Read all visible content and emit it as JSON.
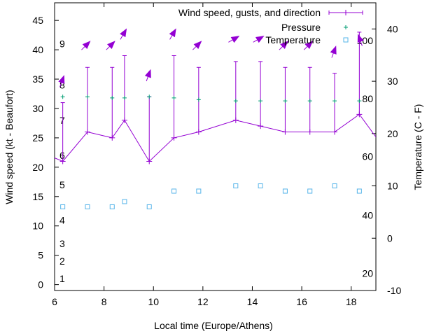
{
  "chart_data": {
    "type": "line",
    "xlabel": "Local time (Europe/Athens)",
    "ylabel_left": "Wind speed (kt - Beaufort)",
    "ylabel_right": "Temperature (C - F)",
    "x_range": [
      6,
      19
    ],
    "x_ticks": [
      6,
      8,
      10,
      12,
      14,
      16,
      18
    ],
    "y_left_range": [
      -1,
      48
    ],
    "y_left_ticks": [
      0,
      5,
      10,
      15,
      20,
      25,
      30,
      35,
      40,
      45
    ],
    "y_right_range": [
      -10,
      45
    ],
    "y_right_ticks": [
      -10,
      0,
      10,
      20,
      30,
      40
    ],
    "beaufort_labels": [
      {
        "label": "1",
        "y": 1
      },
      {
        "label": "2",
        "y": 4
      },
      {
        "label": "3",
        "y": 7
      },
      {
        "label": "4",
        "y": 11
      },
      {
        "label": "5",
        "y": 17
      },
      {
        "label": "6",
        "y": 22
      },
      {
        "label": "7",
        "y": 28
      },
      {
        "label": "8",
        "y": 34
      },
      {
        "label": "9",
        "y": 41
      }
    ],
    "fahrenheit_labels": [
      {
        "label": "20",
        "c": -6.7
      },
      {
        "label": "40",
        "c": 4.4
      },
      {
        "label": "60",
        "c": 15.6
      },
      {
        "label": "80",
        "c": 26.7
      },
      {
        "label": "100",
        "c": 37.8
      }
    ],
    "legend": {
      "position": "top-right",
      "entries": [
        "Wind speed, gusts, and direction",
        "Pressure",
        "Temperature"
      ]
    },
    "colors": {
      "wind": "#9400d3",
      "pressure": "#009e73",
      "temperature": "#56b4e9",
      "axis": "#000000"
    },
    "series": [
      {
        "name": "Wind speed, gusts, and direction",
        "x": [
          5.2,
          6.33,
          7.33,
          8.33,
          8.83,
          9.83,
          10.83,
          11.83,
          13.33,
          14.33,
          15.33,
          16.33,
          17.33,
          18.33,
          19.2
        ],
        "values": [
          23,
          21,
          26,
          25,
          28,
          21,
          25,
          26,
          28,
          27,
          26,
          26,
          26,
          29,
          24
        ],
        "gusts": [
          null,
          31,
          37,
          37,
          39,
          32,
          39,
          37,
          38,
          38,
          37,
          37,
          36,
          43,
          null
        ],
        "direction_deg": [
          null,
          200,
          225,
          225,
          210,
          200,
          210,
          225,
          240,
          240,
          225,
          225,
          200,
          160,
          null
        ]
      },
      {
        "name": "Pressure",
        "x": [
          6.33,
          7.33,
          8.33,
          8.83,
          9.83,
          10.83,
          11.83,
          13.33,
          14.33,
          15.33,
          16.33,
          17.33,
          18.33
        ],
        "values": [
          32,
          32,
          31.8,
          31.8,
          32,
          31.8,
          31.5,
          31.3,
          31.3,
          31.3,
          31.3,
          31.3,
          31.3
        ]
      },
      {
        "name": "Temperature",
        "x": [
          6.33,
          7.33,
          8.33,
          8.83,
          9.83,
          10.83,
          11.83,
          13.33,
          14.33,
          15.33,
          16.33,
          17.33,
          18.33
        ],
        "values": [
          6,
          6,
          6,
          7,
          6,
          9,
          9,
          10,
          10,
          9,
          9,
          10,
          9
        ]
      }
    ]
  }
}
